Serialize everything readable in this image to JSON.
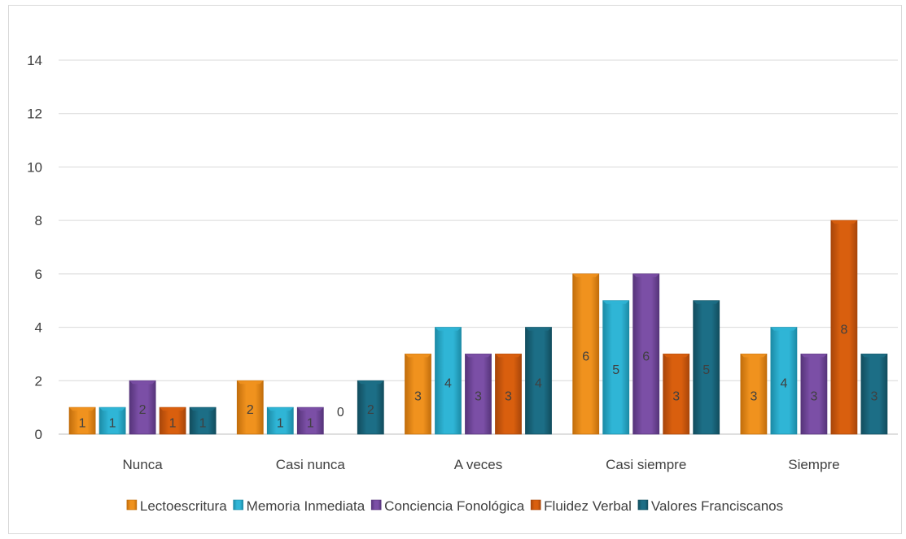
{
  "chart_data": {
    "type": "bar",
    "categories": [
      "Nunca",
      "Casi nunca",
      "A veces",
      "Casi siempre",
      "Siempre"
    ],
    "series": [
      {
        "name": "Lectoescritura",
        "values": [
          1,
          2,
          3,
          6,
          3
        ],
        "color": "#F0921E",
        "dark": "#C26E0C"
      },
      {
        "name": "Memoria Inmediata",
        "values": [
          1,
          1,
          4,
          5,
          4
        ],
        "color": "#2FB5D6",
        "dark": "#1C8BA6"
      },
      {
        "name": "Conciencia Fonológica",
        "values": [
          2,
          1,
          3,
          6,
          3
        ],
        "color": "#7B4FA6",
        "dark": "#56347A"
      },
      {
        "name": "Fluidez Verbal",
        "values": [
          1,
          0,
          3,
          3,
          8
        ],
        "color": "#D95F0E",
        "dark": "#A8460A"
      },
      {
        "name": "Valores Franciscanos",
        "values": [
          1,
          2,
          4,
          5,
          3
        ],
        "color": "#1C6E86",
        "dark": "#124D5E"
      }
    ],
    "yticks": [
      "0",
      "2",
      "4",
      "6",
      "8",
      "10",
      "12",
      "14"
    ],
    "ylim": [
      0,
      14
    ],
    "grid": true,
    "legend": "bottom"
  }
}
